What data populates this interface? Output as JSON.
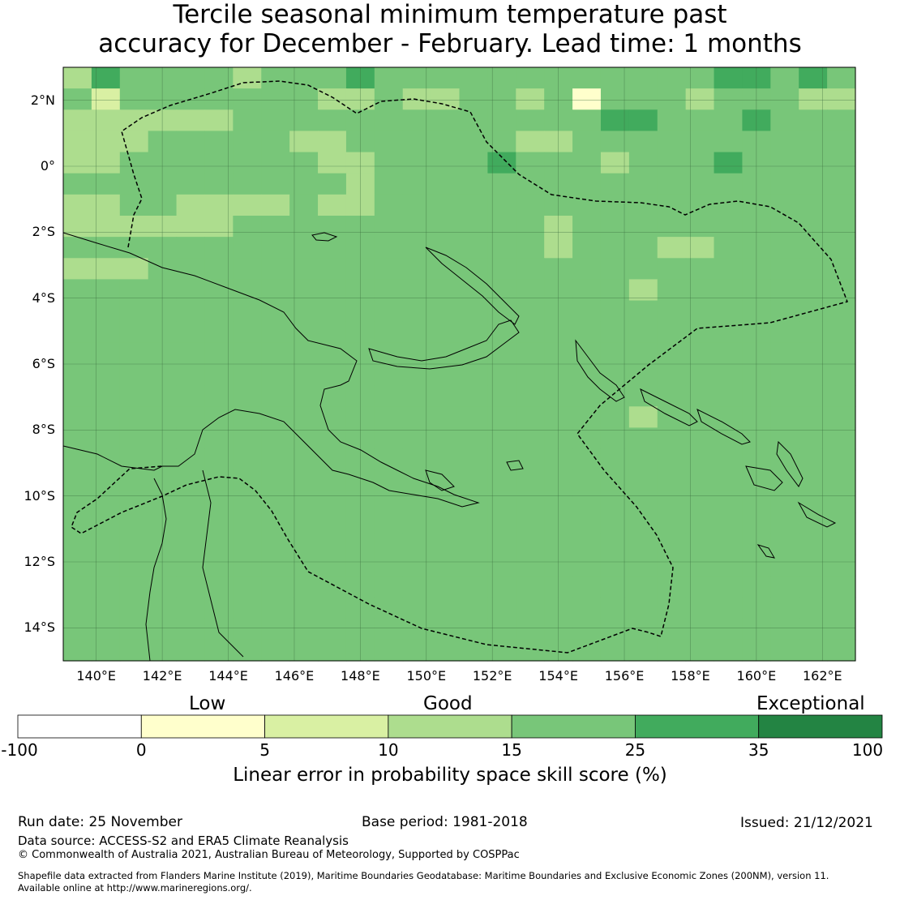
{
  "title": {
    "line1": "Tercile seasonal minimum temperature past",
    "line2": "accuracy for December - February. Lead time: 1 months"
  },
  "map": {
    "lon_ticks": [
      "140°E",
      "142°E",
      "144°E",
      "146°E",
      "148°E",
      "150°E",
      "152°E",
      "154°E",
      "156°E",
      "158°E",
      "160°E",
      "162°E"
    ],
    "lat_ticks": [
      "2°N",
      "0°",
      "2°S",
      "4°S",
      "6°S",
      "8°S",
      "10°S",
      "12°S",
      "14°S"
    ],
    "lon_range": [
      139,
      163
    ],
    "lat_range": [
      -15,
      3
    ],
    "grid_rows": [
      "3544443444544444444444455454",
      "4244444443343344341444344433",
      "3333334444444444444554445444",
      "3334444433444444334444444444",
      "3344444443344445444344454444",
      "4444444444344444444444444444",
      "3344333343344444444444444444",
      "3333334444444444434444444444",
      "4444444444444444434443344444",
      "3334444444444444444444444444",
      "4444444444444444444434444444",
      "4444444444444444444444444444",
      "4444444444444444444444444444",
      "4444444444444444444444444444",
      "4444444444444444444444444444",
      "4444444444444444444444444444",
      "4444444444444444444434444444",
      "4444444444444444444444444444",
      "4444444444444444444444444444",
      "4444444444444444444444444444",
      "4444444444444444444444444444",
      "4444444444444444444444444444",
      "4444444444444444444444444444",
      "4444444444444444444444444444",
      "4444444444444444444444444444",
      "4444444444444444444444444444",
      "4444444444444444444444444444",
      "4444444444444444444444444444"
    ],
    "colors": [
      "#ffffff",
      "#ffffcc",
      "#d9f0a3",
      "#addd8e",
      "#78c679",
      "#41ab5d",
      "#238443"
    ]
  },
  "colorbar": {
    "words": [
      "Low",
      "Good",
      "Exceptional"
    ],
    "ticks": [
      "-100",
      "0",
      "5",
      "10",
      "15",
      "25",
      "35",
      "100"
    ],
    "colors": [
      "#ffffff",
      "#ffffcc",
      "#d9f0a3",
      "#addd8e",
      "#78c679",
      "#41ab5d",
      "#238443"
    ],
    "label": "Linear error in probability space skill score (%)"
  },
  "footer": {
    "run_date": "Run date: 25 November",
    "base_period": "Base period: 1981-2018",
    "issued": "Issued: 21/12/2021",
    "data_source": "Data source: ACCESS-S2 and ERA5 Climate Reanalysis",
    "copyright": "© Commonwealth of Australia 2021, Australian Bureau of Meteorology, Supported by COSPPac",
    "shapefile_line1": "Shapefile data extracted from Flanders Marine Institute (2019), Maritime Boundaries Geodatabase: Maritime Boundaries and Exclusive Economic Zones (200NM), version 11.",
    "shapefile_line2": "Available online at http://www.marineregions.org/."
  }
}
